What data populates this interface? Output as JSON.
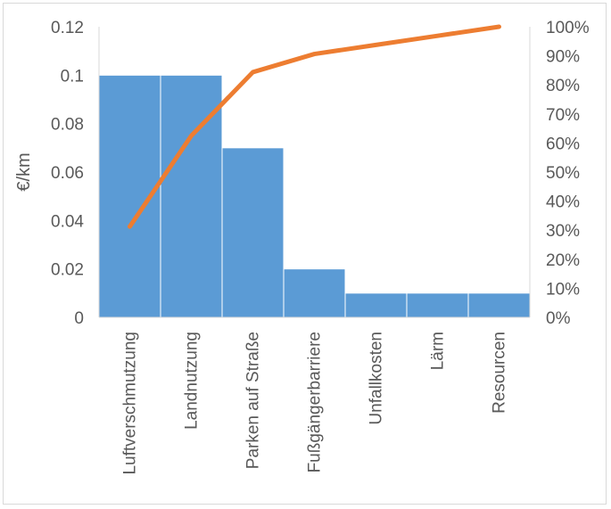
{
  "chart_data": {
    "type": "bar",
    "categories": [
      "Luftverschmutzung",
      "Landnutzung",
      "Parken auf Straße",
      "Fußgängerbarriere",
      "Unfallkosten",
      "Lärm",
      "Resourcen"
    ],
    "series": [
      {
        "type": "bar",
        "axis": "left",
        "values": [
          0.1,
          0.1,
          0.07,
          0.02,
          0.01,
          0.01,
          0.01
        ],
        "color": "#5b9bd5"
      },
      {
        "type": "line",
        "axis": "right",
        "values": [
          0.3125,
          0.625,
          0.84375,
          0.90625,
          0.9375,
          0.96875,
          1.0
        ],
        "color": "#ed7d31"
      }
    ],
    "ylabel": "€/km",
    "ylim": [
      0,
      0.12
    ],
    "y_ticks": [
      "0",
      "0.02",
      "0.04",
      "0.06",
      "0.08",
      "0.1",
      "0.12"
    ],
    "y2lim": [
      0,
      1.0
    ],
    "y2_ticks": [
      "0%",
      "10%",
      "20%",
      "30%",
      "40%",
      "50%",
      "60%",
      "70%",
      "80%",
      "90%",
      "100%"
    ],
    "grid": false,
    "legend": "none"
  }
}
